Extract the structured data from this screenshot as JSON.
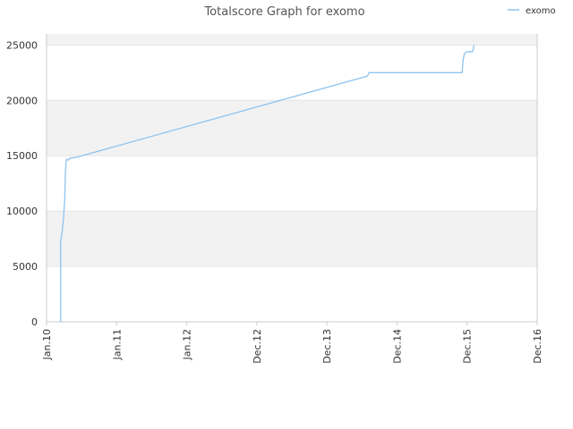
{
  "chart_data": {
    "type": "line",
    "title": "Totalscore Graph for exomo",
    "xlabel": "",
    "ylabel": "",
    "legend_position": "top-right",
    "grid": true,
    "ylim": [
      0,
      26000
    ],
    "yticks": [
      0,
      5000,
      10000,
      15000,
      20000,
      25000
    ],
    "xticks": [
      "Jan.10",
      "Jan.11",
      "Jan.12",
      "Dec.12",
      "Dec.13",
      "Dec.14",
      "Dec.15",
      "Dec.16"
    ],
    "colors": {
      "series": "#8ec3f0",
      "band": "#f2f2f2",
      "axis": "#cccccc"
    },
    "series": [
      {
        "name": "exomo",
        "x": [
          0.2,
          0.2,
          0.22,
          0.24,
          0.26,
          0.27,
          0.28,
          0.29,
          0.3,
          0.32,
          0.34,
          0.42,
          0.45,
          4.58,
          4.6,
          5.93,
          5.94,
          5.96,
          6.0,
          6.08,
          6.1
        ],
        "y": [
          0,
          7200,
          8000,
          9200,
          11200,
          13600,
          14500,
          14700,
          14600,
          14650,
          14800,
          14850,
          14900,
          22200,
          22500,
          22500,
          23500,
          24200,
          24400,
          24400,
          25000
        ]
      }
    ]
  }
}
